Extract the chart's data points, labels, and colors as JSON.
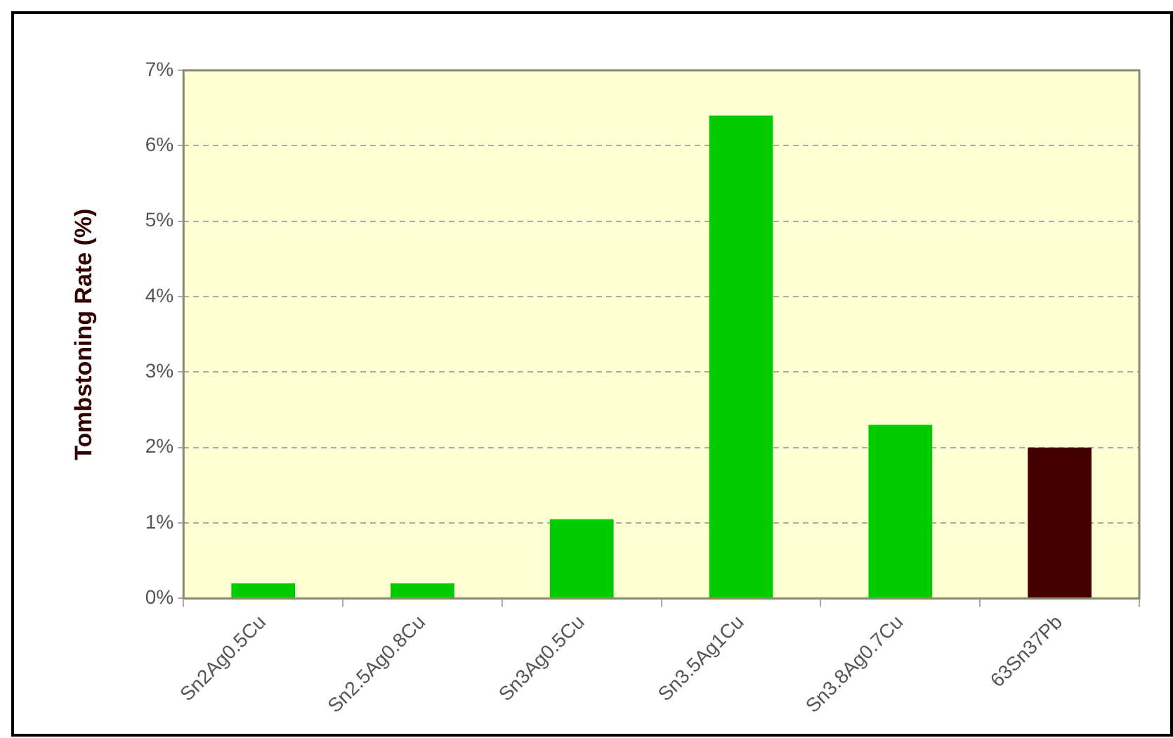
{
  "chart_data": {
    "type": "bar",
    "ylabel": "Tombstoning Rate (%)",
    "categories": [
      "Sn2Ag0.5Cu",
      "Sn2.5Ag0.8Cu",
      "Sn3Ag0.5Cu",
      "Sn3.5Ag1Cu",
      "Sn3.8Ag0.7Cu",
      "63Sn37Pb"
    ],
    "values": [
      0.2,
      0.2,
      1.05,
      6.4,
      2.3,
      2.0
    ],
    "colors": [
      "#00cc00",
      "#00cc00",
      "#00cc00",
      "#00cc00",
      "#00cc00",
      "#440000"
    ],
    "ylim": [
      0,
      7
    ],
    "yticks": [
      {
        "value": 0,
        "label": "0%"
      },
      {
        "value": 1,
        "label": "1%"
      },
      {
        "value": 2,
        "label": "2%"
      },
      {
        "value": 3,
        "label": "3%"
      },
      {
        "value": 4,
        "label": "4%"
      },
      {
        "value": 5,
        "label": "5%"
      },
      {
        "value": 6,
        "label": "6%"
      },
      {
        "value": 7,
        "label": "7%"
      }
    ],
    "grid": "y"
  }
}
